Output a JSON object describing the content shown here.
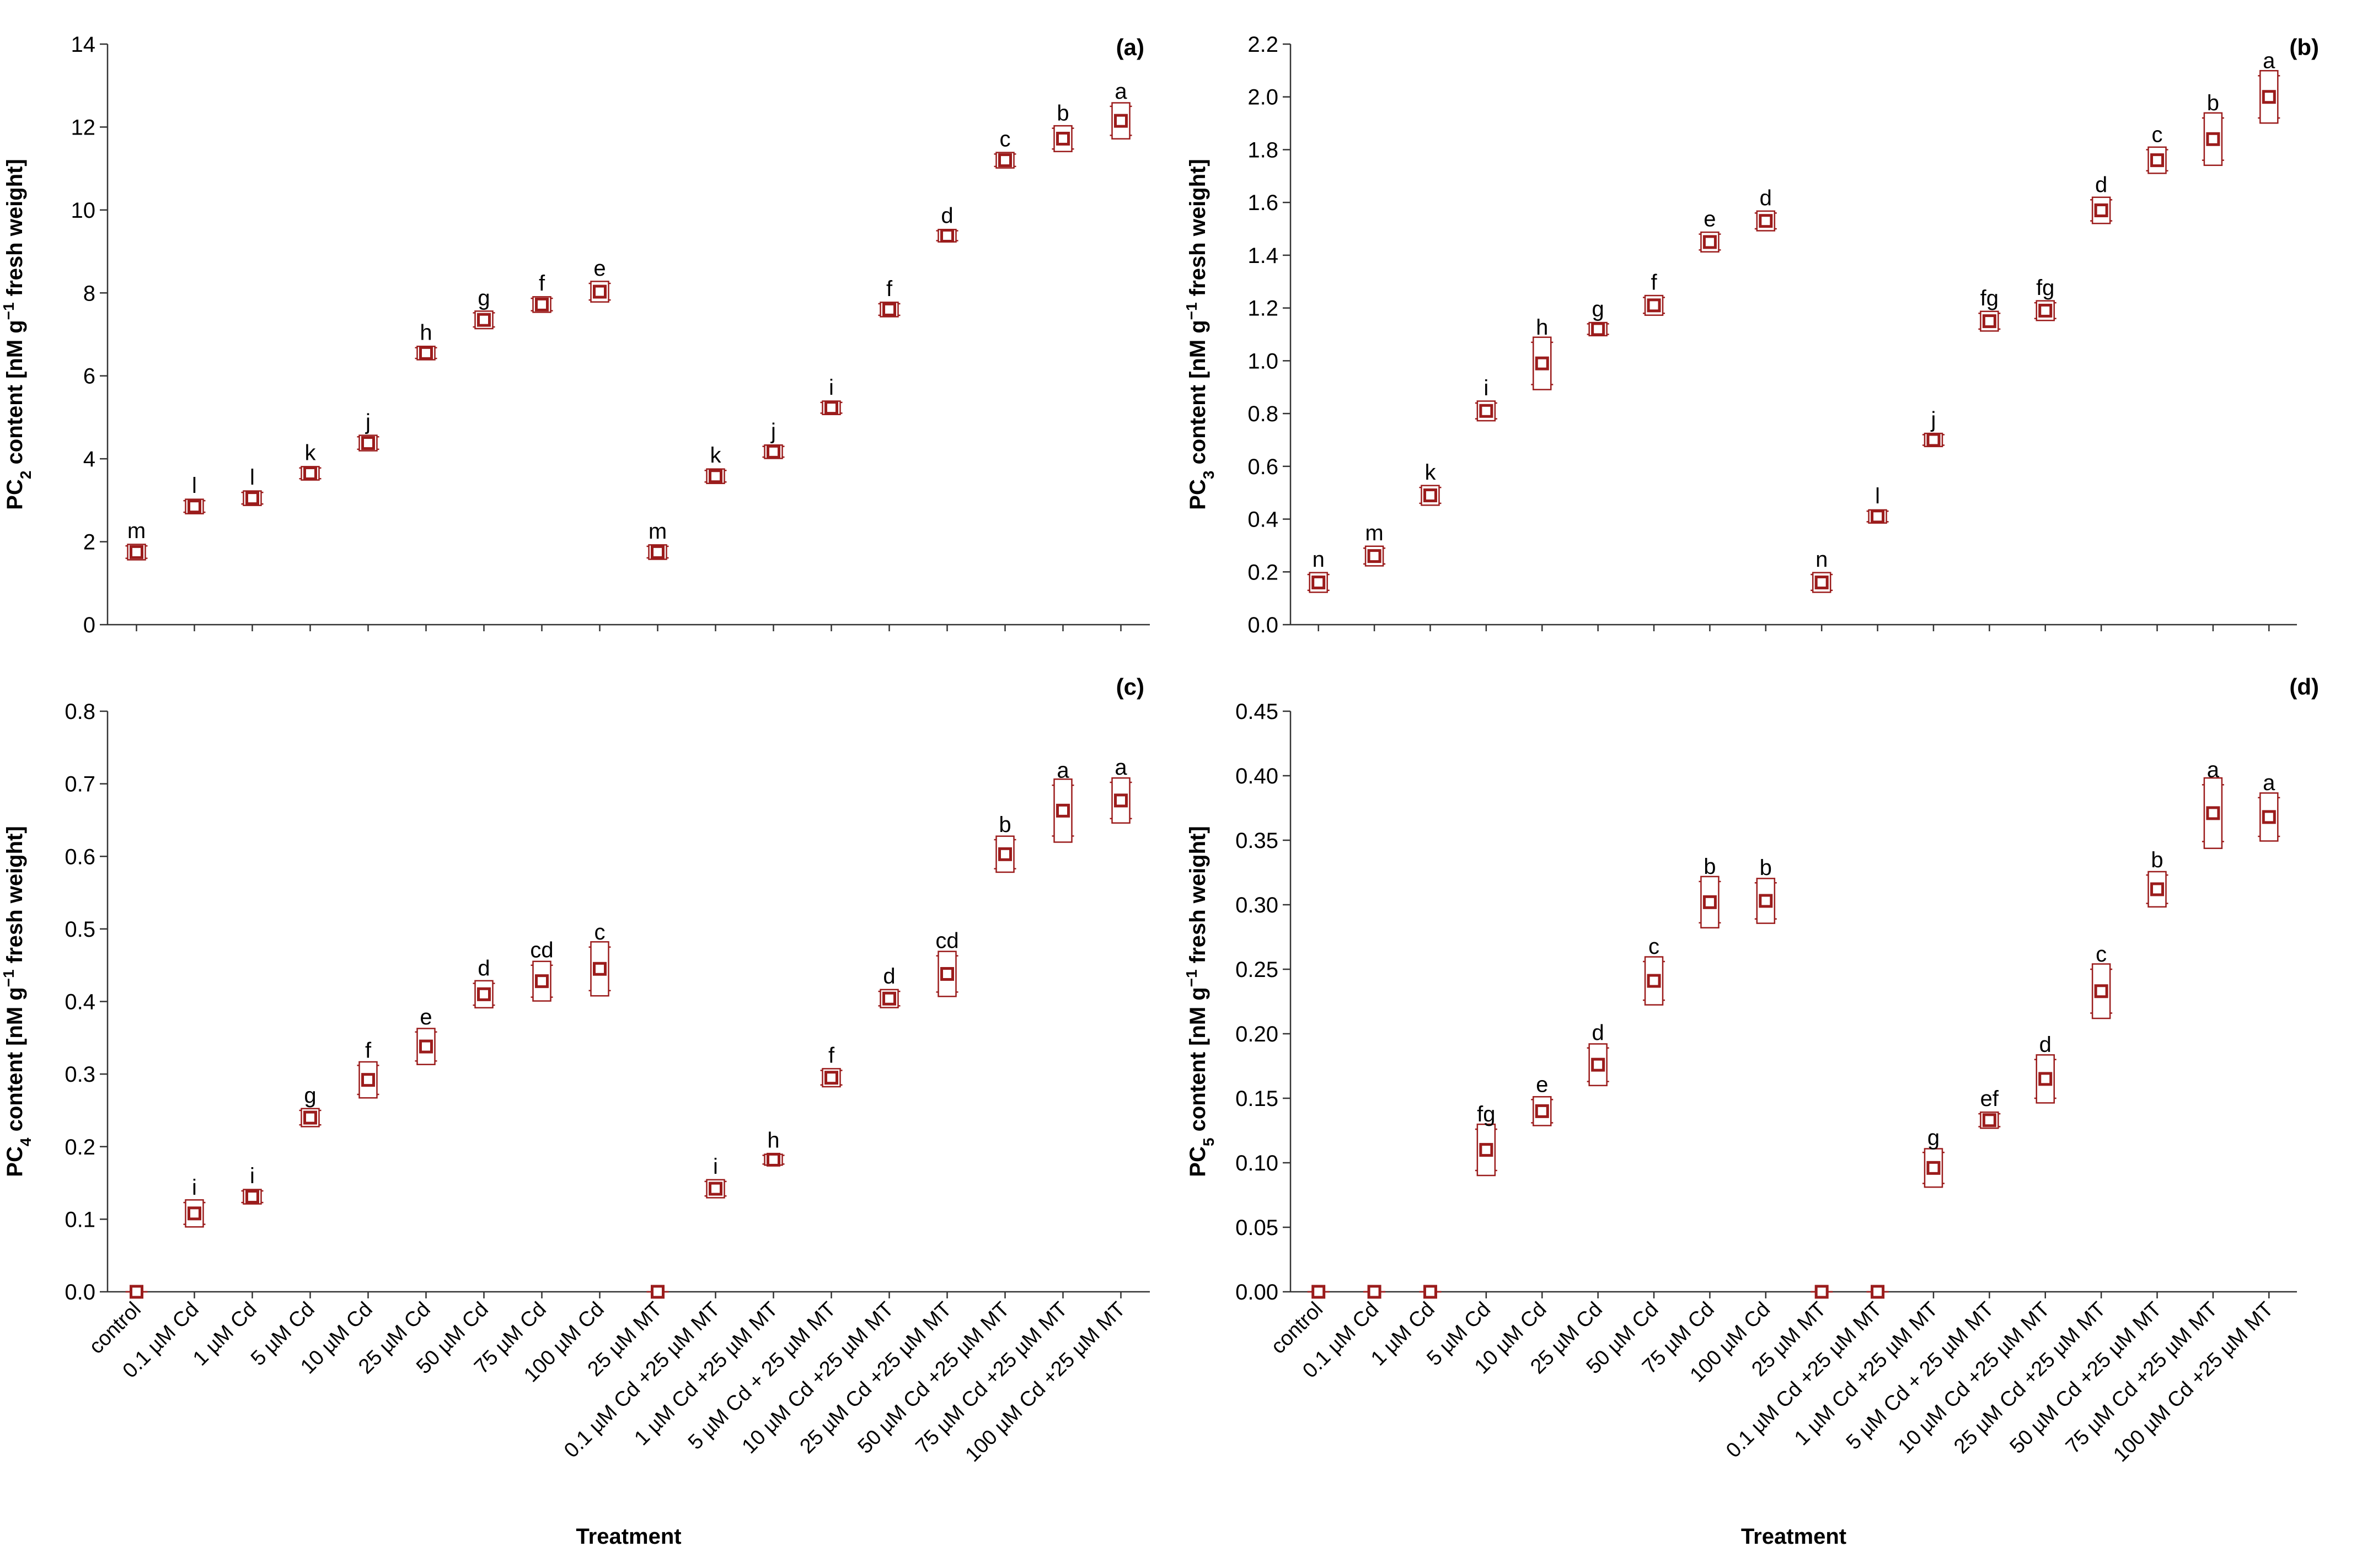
{
  "colors": {
    "marker": "#9b1c1c",
    "axis": "#333333"
  },
  "shared": {
    "xlabel": "Treatment",
    "categories": [
      "control",
      "0.1 µM Cd",
      "1 µM Cd",
      "5 µM Cd",
      "10 µM Cd",
      "25 µM Cd",
      "50 µM Cd",
      "75 µM Cd",
      "100 µM Cd",
      "25 µM MT",
      "0.1 µM Cd +25 µM MT",
      "1 µM Cd +25 µM MT",
      "5 µM Cd + 25 µM MT",
      "10 µM Cd +25 µM MT",
      "25 µM Cd +25 µM MT",
      "50 µM Cd +25 µM MT",
      "75 µM Cd +25 µM MT",
      "100 µM Cd +25 µM MT"
    ]
  },
  "chart_data": [
    {
      "panel": "(a)",
      "type": "scatter",
      "ylabel_prefix": "PC",
      "ylabel_sub": "2",
      "ylabel_mid": " content [nM g",
      "ylabel_sup": "−1",
      "ylabel_suffix": " fresh weight]",
      "ylim": [
        0,
        14
      ],
      "ystep": 2,
      "ydecimals": 0,
      "series": [
        {
          "name": "PC2",
          "values": [
            1.75,
            2.85,
            3.05,
            3.65,
            4.38,
            6.55,
            7.35,
            7.72,
            8.03,
            1.75,
            3.58,
            4.17,
            5.23,
            7.6,
            9.38,
            11.2,
            11.72,
            12.15
          ],
          "errors": [
            0.15,
            0.14,
            0.14,
            0.13,
            0.15,
            0.13,
            0.17,
            0.15,
            0.2,
            0.14,
            0.14,
            0.13,
            0.13,
            0.14,
            0.12,
            0.15,
            0.25,
            0.35
          ],
          "letters": [
            "m",
            "l",
            "l",
            "k",
            "j",
            "h",
            "g",
            "f",
            "e",
            "m",
            "k",
            "j",
            "i",
            "f",
            "d",
            "c",
            "b",
            "a"
          ]
        }
      ]
    },
    {
      "panel": "(b)",
      "type": "scatter",
      "ylabel_prefix": "PC",
      "ylabel_sub": "3",
      "ylabel_mid": " content [nM g",
      "ylabel_sup": "−1",
      "ylabel_suffix": " fresh weight]",
      "ylim": [
        0,
        2.2
      ],
      "ystep": 0.2,
      "ydecimals": 1,
      "series": [
        {
          "name": "PC3",
          "values": [
            0.16,
            0.26,
            0.49,
            0.81,
            0.99,
            1.12,
            1.21,
            1.45,
            1.53,
            0.16,
            0.41,
            0.7,
            1.15,
            1.19,
            1.57,
            1.76,
            1.84,
            2.0
          ],
          "errors": [
            0.03,
            0.03,
            0.03,
            0.03,
            0.08,
            0.02,
            0.03,
            0.03,
            0.03,
            0.03,
            0.02,
            0.02,
            0.03,
            0.03,
            0.04,
            0.04,
            0.08,
            0.08
          ],
          "letters": [
            "n",
            "m",
            "k",
            "i",
            "h",
            "g",
            "f",
            "e",
            "d",
            "n",
            "l",
            "j",
            "fg",
            "fg",
            "d",
            "c",
            "b",
            "a"
          ]
        }
      ]
    },
    {
      "panel": "(c)",
      "type": "scatter",
      "ylabel_prefix": "PC",
      "ylabel_sub": "4",
      "ylabel_mid": " content [nM g",
      "ylabel_sup": "−1",
      "ylabel_suffix": " fresh weight]",
      "ylim": [
        0,
        0.8
      ],
      "ystep": 0.1,
      "ydecimals": 1,
      "series": [
        {
          "name": "PC4",
          "values": [
            0.0,
            0.108,
            0.131,
            0.24,
            0.292,
            0.338,
            0.41,
            0.428,
            0.445,
            0.0,
            0.142,
            0.182,
            0.295,
            0.404,
            0.438,
            0.603,
            0.663,
            0.677
          ],
          "errors": [
            0.0,
            0.015,
            0.008,
            0.01,
            0.02,
            0.02,
            0.015,
            0.022,
            0.03,
            0.0,
            0.01,
            0.006,
            0.01,
            0.01,
            0.025,
            0.02,
            0.035,
            0.025
          ],
          "letters": [
            "",
            "i",
            "i",
            "g",
            "f",
            "e",
            "d",
            "cd",
            "c",
            "",
            "i",
            "h",
            "f",
            "d",
            "cd",
            "b",
            "a",
            "a"
          ]
        }
      ]
    },
    {
      "panel": "(d)",
      "type": "scatter",
      "ylabel_prefix": "PC",
      "ylabel_sub": "5",
      "ylabel_mid": " content [nM g",
      "ylabel_sup": "−1",
      "ylabel_suffix": " fresh weight]",
      "ylim": [
        0,
        0.45
      ],
      "ystep": 0.05,
      "ydecimals": 2,
      "series": [
        {
          "name": "PC5",
          "values": [
            0.0,
            0.0,
            0.0,
            0.11,
            0.14,
            0.176,
            0.241,
            0.302,
            0.303,
            0.0,
            0.0,
            0.096,
            0.133,
            0.165,
            0.233,
            0.312,
            0.371,
            0.368
          ],
          "errors": [
            0.0,
            0.0,
            0.0,
            0.016,
            0.009,
            0.013,
            0.015,
            0.016,
            0.014,
            0.0,
            0.0,
            0.012,
            0.005,
            0.015,
            0.017,
            0.011,
            0.022,
            0.015
          ],
          "letters": [
            "",
            "",
            "",
            "fg",
            "e",
            "d",
            "c",
            "b",
            "b",
            "",
            "",
            "g",
            "ef",
            "d",
            "c",
            "b",
            "a",
            "a"
          ]
        }
      ]
    }
  ]
}
